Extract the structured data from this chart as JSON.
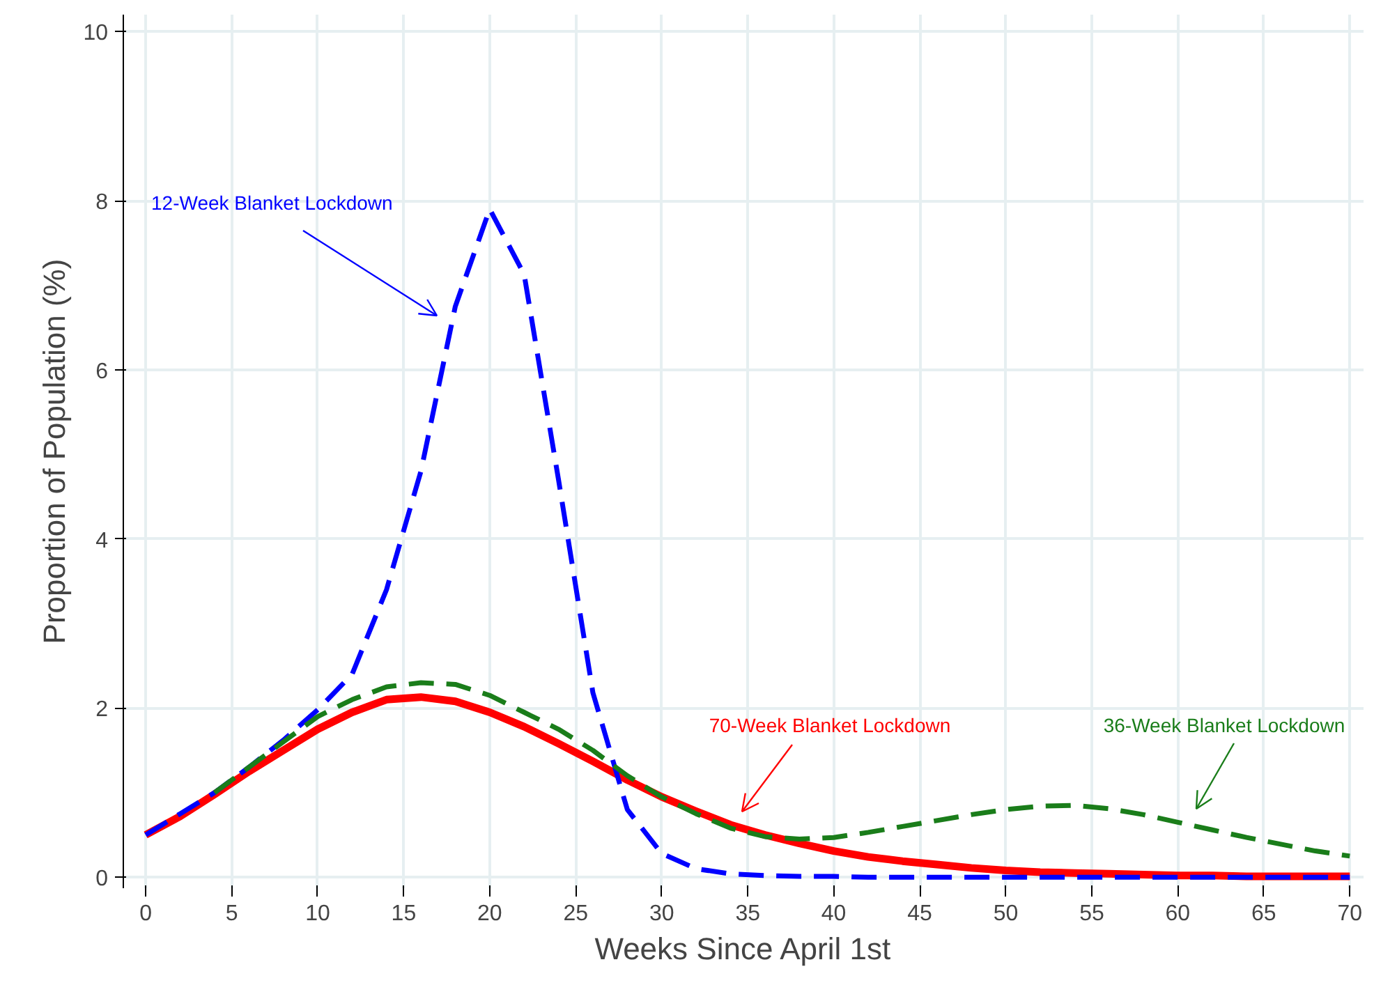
{
  "chart_data": {
    "type": "line",
    "xlabel": "Weeks Since April 1st",
    "ylabel": "Proportion of Population (%)",
    "x": [
      0,
      2,
      4,
      6,
      8,
      10,
      12,
      14,
      16,
      18,
      20,
      22,
      24,
      26,
      28,
      30,
      32,
      34,
      36,
      38,
      40,
      42,
      44,
      46,
      48,
      50,
      52,
      54,
      56,
      58,
      60,
      62,
      64,
      66,
      68,
      70
    ],
    "series": [
      {
        "color": "#0000ff",
        "line_style": "dashed",
        "values": [
          0.5,
          0.75,
          1.0,
          1.3,
          1.62,
          1.98,
          2.4,
          3.4,
          4.8,
          6.75,
          7.9,
          7.13,
          4.7,
          2.18,
          0.8,
          0.28,
          0.1,
          0.04,
          0.02,
          0.01,
          0.01,
          0,
          0,
          0,
          0,
          0,
          0,
          0,
          0,
          0,
          0,
          0,
          0,
          0,
          0,
          0
        ]
      },
      {
        "color": "#1a7d1a",
        "line_style": "dashed",
        "values": [
          null,
          null,
          1.0,
          1.3,
          1.6,
          1.9,
          2.1,
          2.25,
          2.3,
          2.28,
          2.15,
          1.95,
          1.75,
          1.5,
          1.2,
          0.95,
          0.75,
          0.58,
          0.48,
          0.45,
          0.47,
          0.53,
          0.6,
          0.67,
          0.74,
          0.8,
          0.84,
          0.85,
          0.81,
          0.74,
          0.65,
          0.56,
          0.47,
          0.39,
          0.31,
          0.25
        ]
      },
      {
        "color": "#ff0000",
        "line_style": "solid",
        "values": [
          0.5,
          0.72,
          0.98,
          1.25,
          1.5,
          1.75,
          1.95,
          2.1,
          2.13,
          2.08,
          1.95,
          1.78,
          1.58,
          1.37,
          1.15,
          0.95,
          0.78,
          0.62,
          0.5,
          0.4,
          0.31,
          0.24,
          0.19,
          0.15,
          0.11,
          0.08,
          0.06,
          0.05,
          0.04,
          0.03,
          0.02,
          0.02,
          0.01,
          0.01,
          0.01,
          0.01
        ]
      }
    ],
    "xlim": [
      -1.3,
      70.8
    ],
    "ylim": [
      -0.13,
      10.2
    ],
    "xticks": [
      0,
      5,
      10,
      15,
      20,
      25,
      30,
      35,
      40,
      45,
      50,
      55,
      60,
      65,
      70
    ],
    "yticks": [
      0,
      2,
      4,
      6,
      8,
      10
    ],
    "grid": true,
    "annotations": [
      "12-Week Blanket Lockdown",
      "70-Week Blanket Lockdown",
      "36-Week Blanket Lockdown"
    ]
  }
}
